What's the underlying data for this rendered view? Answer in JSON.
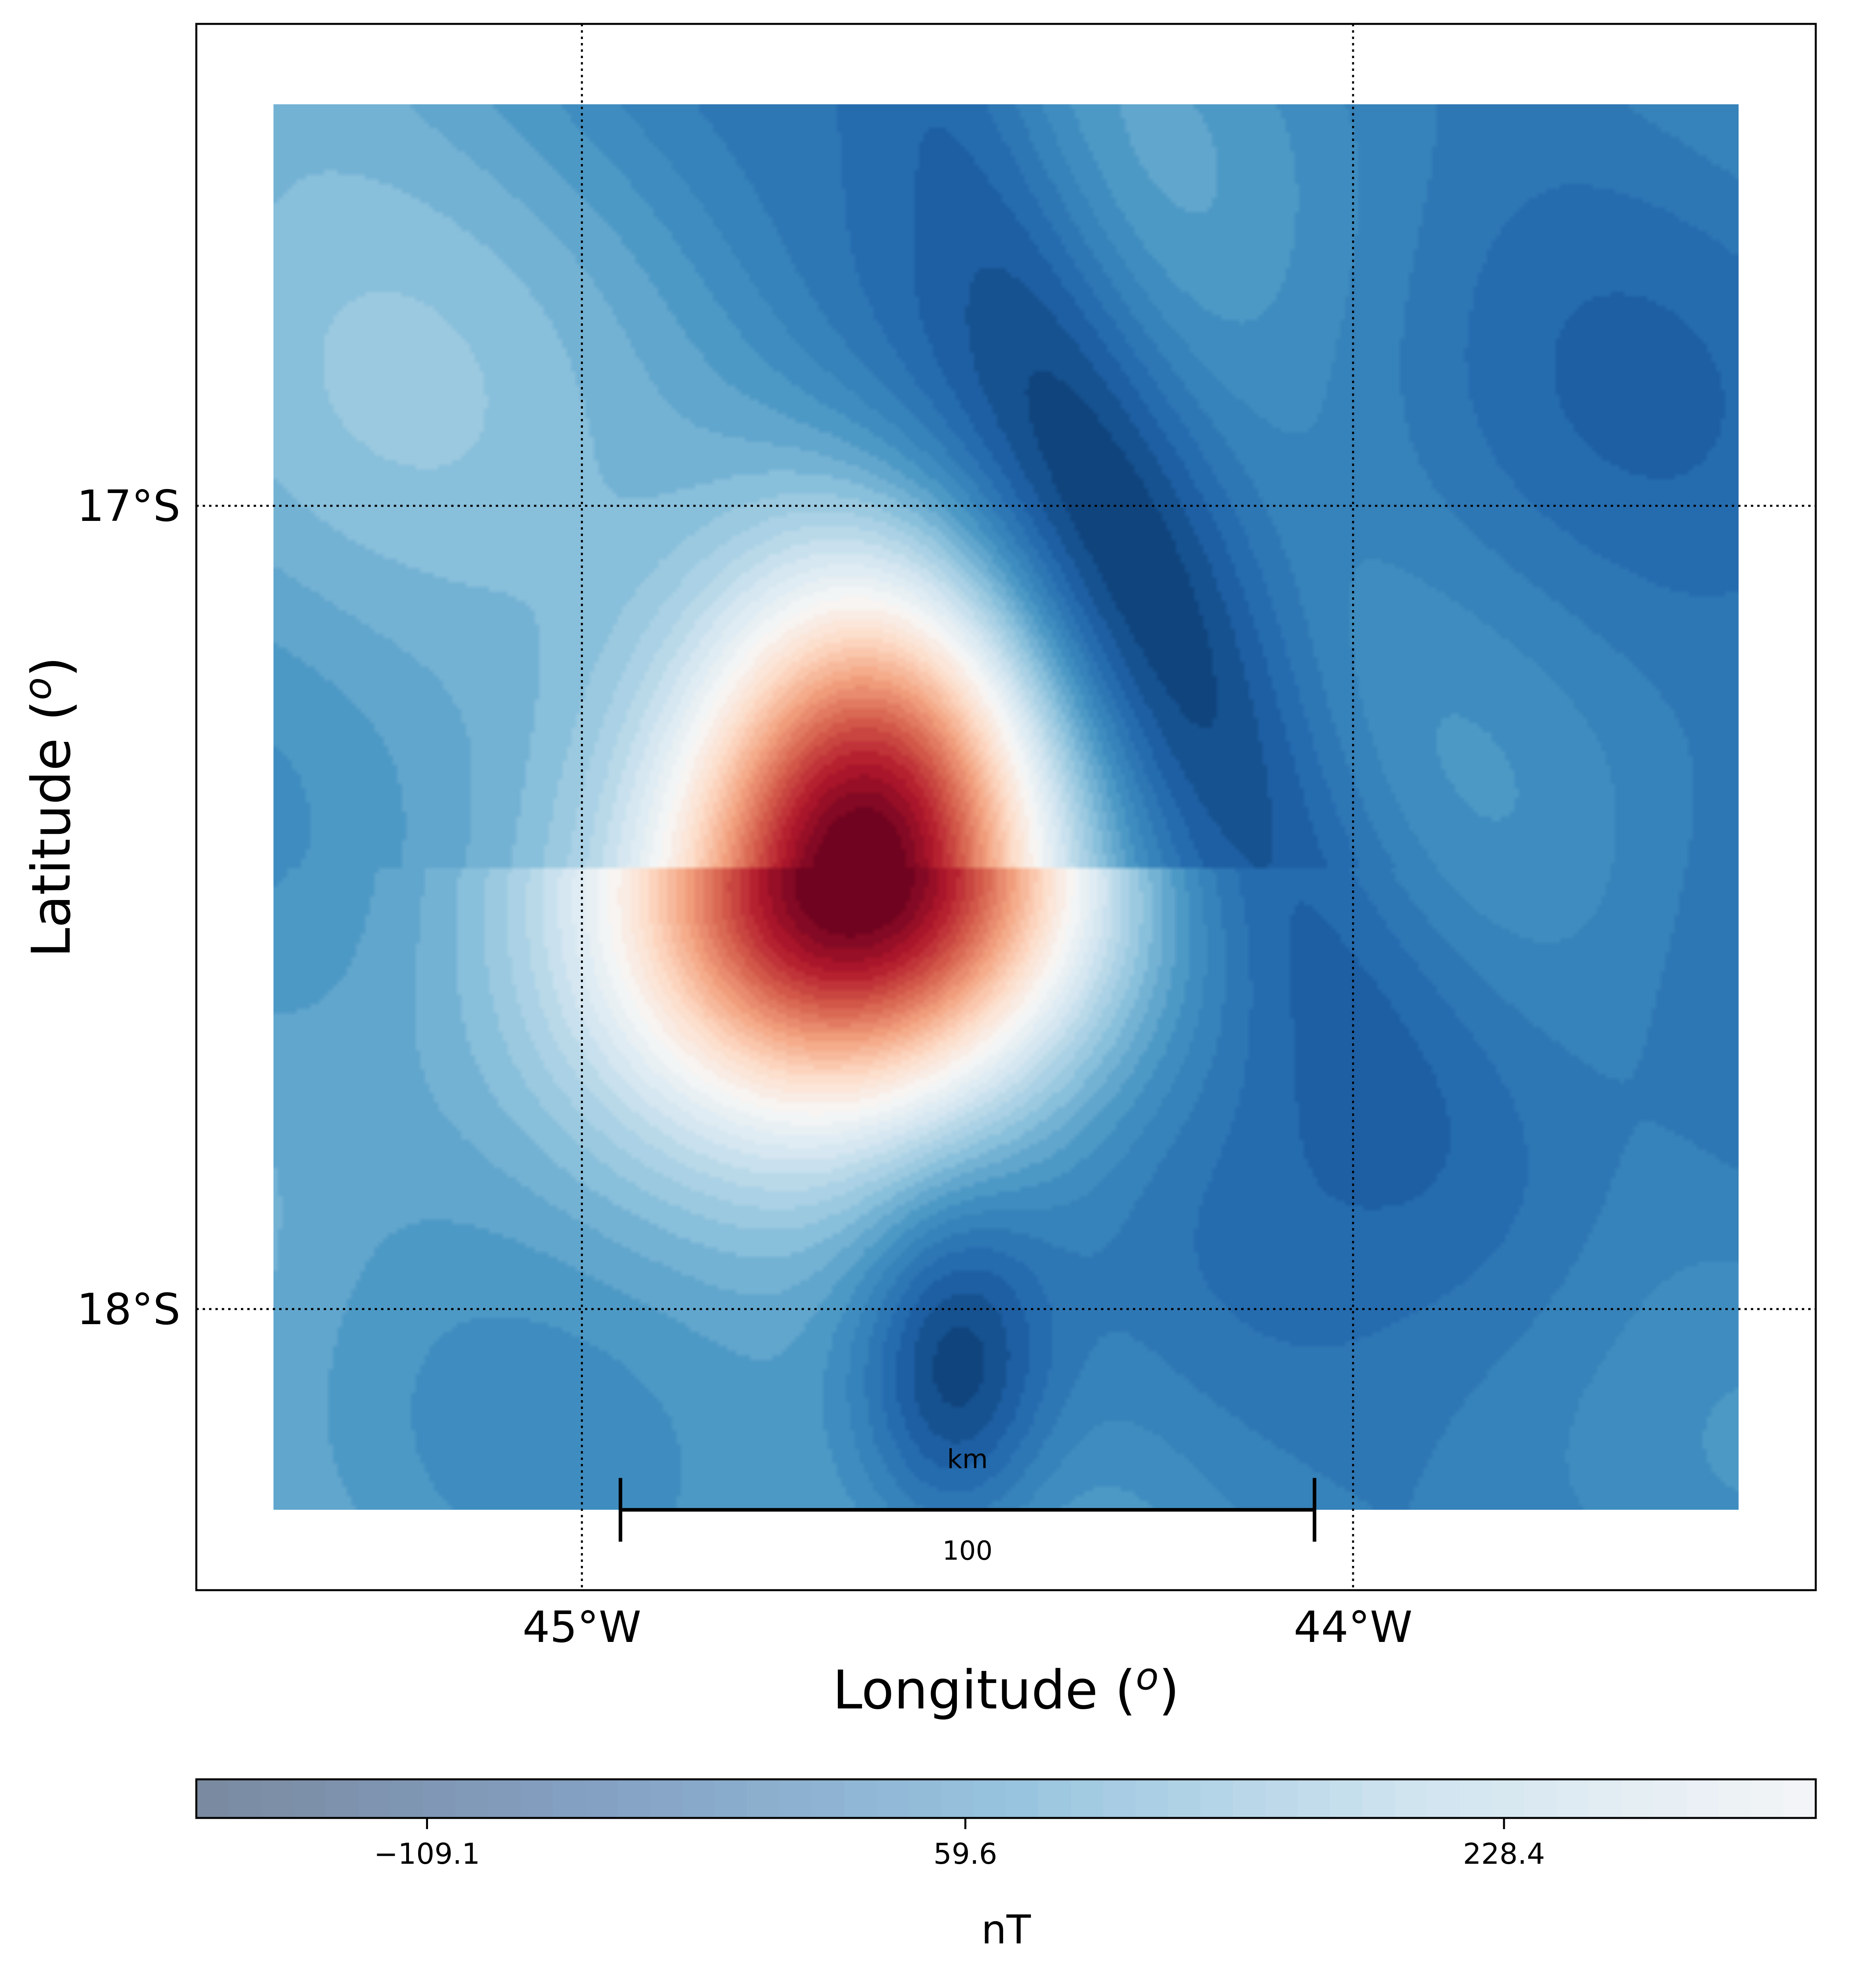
{
  "chart_data": {
    "type": "heatmap",
    "subtype": "filled-contour map (magnetic anomaly)",
    "xlabel": "Longitude (",
    "xlabel_sup": "o",
    "xlabel_end": ")",
    "ylabel": "Latitude (",
    "ylabel_sup": "o",
    "ylabel_end": ")",
    "x_ticks": [
      {
        "value": -45,
        "label": "45°W"
      },
      {
        "value": -44,
        "label": "44°W"
      }
    ],
    "y_ticks": [
      {
        "value": -17,
        "label": "17°S"
      },
      {
        "value": -18,
        "label": "18°S"
      }
    ],
    "xlim": [
      -45.5,
      -43.4
    ],
    "ylim": [
      -18.35,
      -16.4
    ],
    "data_extent": {
      "lon": [
        -45.4,
        -43.5
      ],
      "lat": [
        -18.25,
        -16.5
      ]
    },
    "grid": "dotted, at tick positions",
    "colormap": "RdBu_r",
    "colormap_stops": [
      "#053061",
      "#2166ac",
      "#4393c3",
      "#92c5de",
      "#d1e5f0",
      "#f7f7f7",
      "#fddbc7",
      "#f4a582",
      "#d6604d",
      "#b2182b",
      "#67001f"
    ],
    "field_range": [
      -200,
      400
    ],
    "anomalies": [
      {
        "kind": "positive",
        "lon": -44.63,
        "lat": -17.45,
        "peak": 400
      },
      {
        "kind": "negative",
        "lon": -44.32,
        "lat": -17.15,
        "peak": -175
      },
      {
        "kind": "negative",
        "lon": -44.52,
        "lat": -18.08,
        "peak": -190
      },
      {
        "kind": "negative",
        "lon": -44.45,
        "lat": -16.65,
        "peak": -170
      }
    ],
    "background_level": -80,
    "scalebar": {
      "length_label": "100",
      "unit_label": "km",
      "lon_start": -44.95,
      "lon_end": -44.05,
      "lat": -18.25
    },
    "colorbar": {
      "label": "nT",
      "ticks": [
        -109.1,
        59.6,
        228.4
      ],
      "tick_labels": [
        "−109.1",
        "59.6",
        "228.4"
      ],
      "range": [
        -181.4,
        326.1
      ],
      "steps": 50,
      "faded_stops": [
        "#7a8aa0",
        "#84a1c4",
        "#97c3de",
        "#cfe4ef",
        "#f4f5f7"
      ]
    }
  }
}
